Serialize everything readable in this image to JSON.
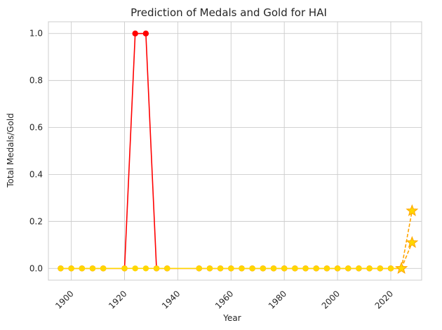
{
  "chart_data": {
    "type": "line",
    "title": "Prediction of Medals and Gold for HAI",
    "xlabel": "Year",
    "ylabel": "Total Medals/Gold",
    "xlim": [
      1891.4,
      2031.6
    ],
    "ylim": [
      -0.05,
      1.05
    ],
    "xticks": [
      1900,
      1920,
      1940,
      1960,
      1980,
      2000,
      2020
    ],
    "yticks": [
      0.0,
      0.2,
      0.4,
      0.6,
      0.8,
      1.0
    ],
    "xtick_labels": [
      "1900",
      "1920",
      "1940",
      "1960",
      "1980",
      "2000",
      "2020"
    ],
    "ytick_labels": [
      "0.0",
      "0.2",
      "0.4",
      "0.6",
      "0.8",
      "1.0"
    ],
    "grid": true,
    "series": [
      {
        "role": "total-medals-history",
        "color": "#ff0000",
        "marker": "circle",
        "line_style": "solid",
        "x": [
          1896,
          1900,
          1904,
          1908,
          1912,
          1920,
          1924,
          1928,
          1932,
          1936,
          1948,
          1952,
          1956,
          1960,
          1964,
          1968,
          1972,
          1976,
          1980,
          1984,
          1988,
          1992,
          1996,
          2000,
          2004,
          2008,
          2012,
          2016,
          2020,
          2024
        ],
        "y": [
          0,
          0,
          0,
          0,
          0,
          0,
          1,
          1,
          0,
          0,
          0,
          0,
          0,
          0,
          0,
          0,
          0,
          0,
          0,
          0,
          0,
          0,
          0,
          0,
          0,
          0,
          0,
          0,
          0,
          0
        ]
      },
      {
        "role": "gold-medals-history",
        "color": "#ffd700",
        "marker": "circle",
        "line_style": "solid",
        "x": [
          1896,
          1900,
          1904,
          1908,
          1912,
          1920,
          1924,
          1928,
          1932,
          1936,
          1948,
          1952,
          1956,
          1960,
          1964,
          1968,
          1972,
          1976,
          1980,
          1984,
          1988,
          1992,
          1996,
          2000,
          2004,
          2008,
          2012,
          2016,
          2020,
          2024
        ],
        "y": [
          0,
          0,
          0,
          0,
          0,
          0,
          0,
          0,
          0,
          0,
          0,
          0,
          0,
          0,
          0,
          0,
          0,
          0,
          0,
          0,
          0,
          0,
          0,
          0,
          0,
          0,
          0,
          0,
          0,
          0
        ]
      },
      {
        "role": "prediction-upper",
        "color": "#ffa500",
        "marker_color": "#ffd700",
        "marker": "star",
        "line_style": "dashed",
        "x": [
          2024,
          2028
        ],
        "y": [
          0,
          0.245
        ]
      },
      {
        "role": "prediction-lower",
        "color": "#ffa500",
        "marker_color": "#ffd700",
        "marker": "star",
        "line_style": "dashed",
        "x": [
          2024,
          2028
        ],
        "y": [
          0,
          0.11
        ]
      }
    ]
  }
}
